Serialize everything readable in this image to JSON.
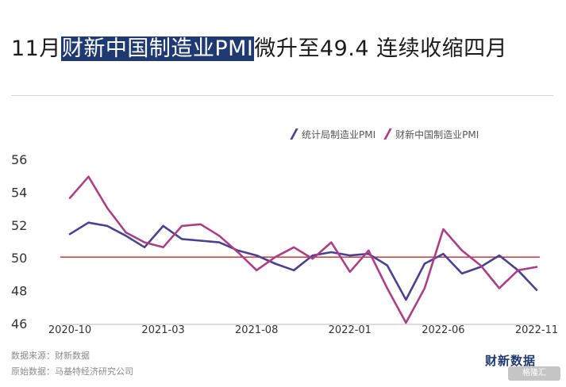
{
  "title": {
    "prefix": "11月",
    "highlight": "财新中国制造业PMI",
    "suffix": "微升至49.4 连续收缩四月"
  },
  "colors": {
    "nbs": "#4a418f",
    "caixin": "#ab3f86",
    "reference": "#c8242b",
    "axis": "#bbbbbb",
    "text": "#333333"
  },
  "chart_data": {
    "type": "line",
    "title": "11月财新中国制造业PMI微升至49.4 连续收缩四月",
    "xlabel": "",
    "ylabel": "",
    "ylim": [
      46,
      56
    ],
    "yticks": [
      46,
      48,
      50,
      52,
      54,
      56
    ],
    "x": [
      "2020-10",
      "2020-11",
      "2020-12",
      "2021-01",
      "2021-02",
      "2021-03",
      "2021-04",
      "2021-05",
      "2021-06",
      "2021-07",
      "2021-08",
      "2021-09",
      "2021-10",
      "2021-11",
      "2021-12",
      "2022-01",
      "2022-02",
      "2022-03",
      "2022-04",
      "2022-05",
      "2022-06",
      "2022-07",
      "2022-08",
      "2022-09",
      "2022-10",
      "2022-11"
    ],
    "xtick_labels": [
      "2020-10",
      "2021-03",
      "2021-08",
      "2022-01",
      "2022-06",
      "2022-11"
    ],
    "reference_line": 50,
    "series": [
      {
        "name": "统计局制造业PMI",
        "values": [
          51.4,
          52.1,
          51.9,
          51.3,
          50.6,
          51.9,
          51.1,
          51.0,
          50.9,
          50.4,
          50.1,
          49.6,
          49.2,
          50.1,
          50.3,
          50.1,
          50.2,
          49.5,
          47.4,
          49.6,
          50.2,
          49.0,
          49.4,
          50.1,
          49.2,
          48.0
        ]
      },
      {
        "name": "财新中国制造业PMI",
        "values": [
          53.6,
          54.9,
          53.0,
          51.5,
          50.9,
          50.6,
          51.9,
          52.0,
          51.3,
          50.3,
          49.2,
          50.0,
          50.6,
          49.9,
          50.9,
          49.1,
          50.4,
          48.1,
          46.0,
          48.1,
          51.7,
          50.4,
          49.5,
          48.1,
          49.2,
          49.4
        ]
      }
    ]
  },
  "footer": {
    "source_label": "数据来源：",
    "source_value": "财新数据",
    "origin_label": "原始数据：",
    "origin_value": "马基特经济研究公司"
  },
  "brand": {
    "name": "财新数据",
    "stamp": "格隆汇"
  }
}
